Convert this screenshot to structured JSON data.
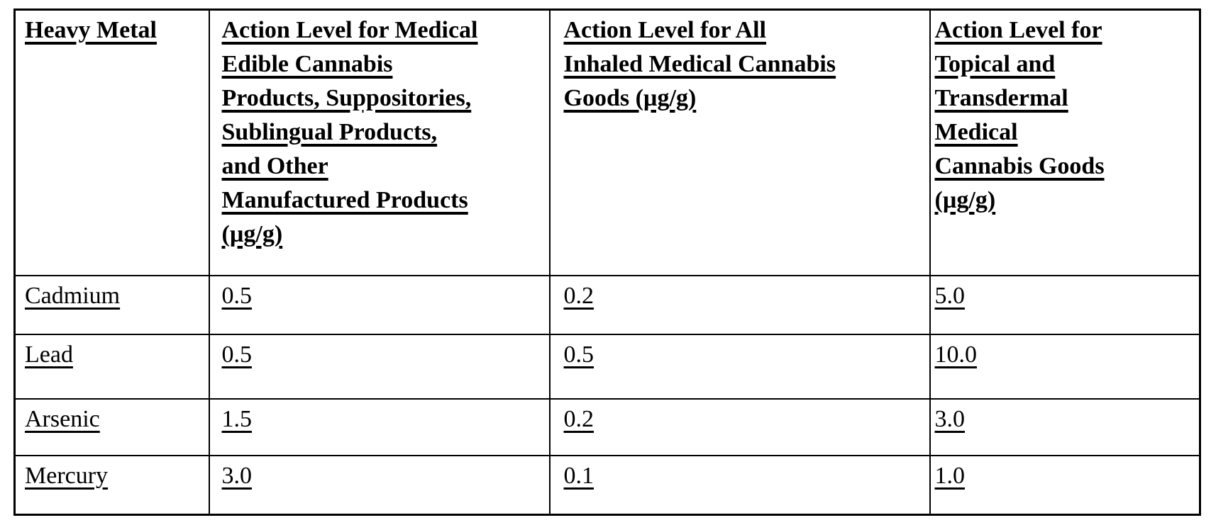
{
  "table": {
    "headers": {
      "metal": {
        "lines": [
          "Heavy Metal"
        ]
      },
      "edible": {
        "lines": [
          "Action Level for Medical",
          "Edible Cannabis",
          "Products, Suppositories,",
          "Sublingual Products,",
          "and Other",
          "Manufactured Products",
          "(µg/g)"
        ]
      },
      "inhaled": {
        "lines": [
          "Action Level for All",
          "Inhaled Medical Cannabis",
          "Goods (µg/g)"
        ]
      },
      "topical": {
        "lines": [
          "Action Level for",
          "Topical and",
          "Transdermal",
          "Medical",
          "Cannabis Goods",
          "(µg/g)"
        ]
      }
    },
    "rows": [
      {
        "metal": "Cadmium",
        "edible": "0.5",
        "inhaled": "0.2",
        "topical": "5.0"
      },
      {
        "metal": "Lead",
        "edible": "0.5",
        "inhaled": "0.5",
        "topical": "10.0"
      },
      {
        "metal": "Arsenic",
        "edible": "1.5",
        "inhaled": "0.2",
        "topical": "3.0"
      },
      {
        "metal": "Mercury",
        "edible": "3.0",
        "inhaled": "0.1",
        "topical": "1.0"
      }
    ],
    "colors": {
      "text": "#000000",
      "border": "#000000",
      "background": "#ffffff"
    }
  }
}
